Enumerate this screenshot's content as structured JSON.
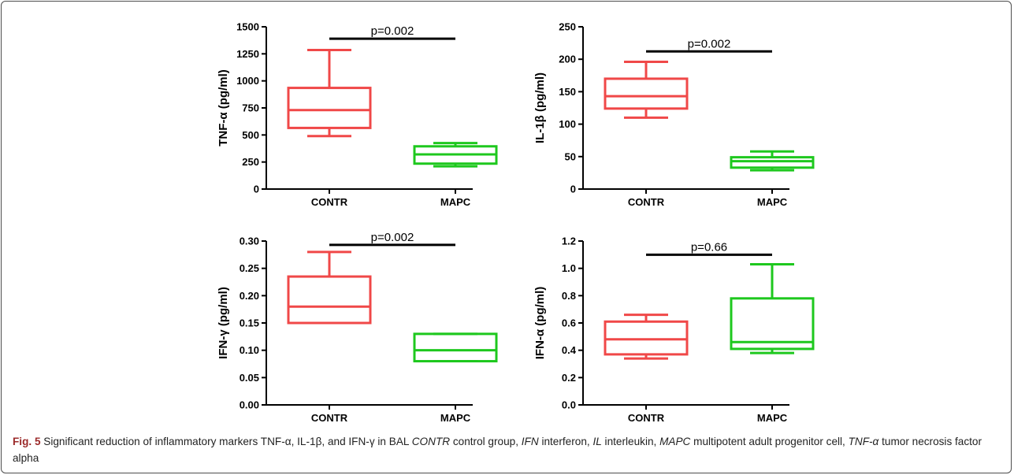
{
  "caption": {
    "label": "Fig. 5",
    "text": "Significant reduction of inflammatory markers TNF-α, IL-1β, and IFN-γ in BAL CONTR control group, IFN interferon, IL interleukin, MAPC multipotent adult progenitor cell, TNF-α tumor necrosis factor alpha",
    "segments": [
      {
        "text": " Significant reduction of inflammatory markers TNF-α, IL-1β, and IFN-γ in BAL ",
        "italic": false
      },
      {
        "text": "CONTR",
        "italic": true
      },
      {
        "text": " control group, ",
        "italic": false
      },
      {
        "text": "IFN",
        "italic": true
      },
      {
        "text": " interferon, ",
        "italic": false
      },
      {
        "text": "IL",
        "italic": true
      },
      {
        "text": " interleukin, ",
        "italic": false
      },
      {
        "text": "MAPC",
        "italic": true
      },
      {
        "text": " multipotent adult progenitor cell, ",
        "italic": false
      },
      {
        "text": "TNF-α",
        "italic": true
      },
      {
        "text": " tumor necrosis factor alpha",
        "italic": false
      }
    ]
  },
  "colors": {
    "contr": "#f04848",
    "mapc": "#1ec81e",
    "axis": "#000000"
  },
  "chart_data": [
    {
      "id": "tnf",
      "type": "box",
      "ylabel": "TNF-α (pg/ml)",
      "ylim": [
        0,
        1500
      ],
      "yticks": [
        "0",
        "250",
        "500",
        "750",
        "1000",
        "1250",
        "1500"
      ],
      "categories": [
        "CONTR",
        "MAPC"
      ],
      "series": [
        {
          "category": "CONTR",
          "min": 490,
          "q1": 565,
          "median": 730,
          "q3": 935,
          "max": 1285,
          "color_key": "contr"
        },
        {
          "category": "MAPC",
          "min": 210,
          "q1": 235,
          "median": 320,
          "q3": 395,
          "max": 425,
          "color_key": "mapc"
        }
      ],
      "annotation": {
        "text": "p=0.002",
        "y": 1390
      }
    },
    {
      "id": "il1b",
      "type": "box",
      "ylabel": "IL-1β (pg/ml)",
      "ylim": [
        0,
        250
      ],
      "yticks": [
        "0",
        "50",
        "100",
        "150",
        "200",
        "250"
      ],
      "categories": [
        "CONTR",
        "MAPC"
      ],
      "series": [
        {
          "category": "CONTR",
          "min": 110,
          "q1": 124,
          "median": 143,
          "q3": 170,
          "max": 196,
          "color_key": "contr"
        },
        {
          "category": "MAPC",
          "min": 29,
          "q1": 33,
          "median": 43,
          "q3": 49,
          "max": 58,
          "color_key": "mapc"
        }
      ],
      "annotation": {
        "text": "p=0.002",
        "y": 212
      }
    },
    {
      "id": "ifng",
      "type": "box",
      "ylabel": "IFN-γ (pg/ml)",
      "ylim": [
        0,
        0.3
      ],
      "yticks": [
        "0.00",
        "0.05",
        "0.10",
        "0.15",
        "0.20",
        "0.25",
        "0.30"
      ],
      "categories": [
        "CONTR",
        "MAPC"
      ],
      "series": [
        {
          "category": "CONTR",
          "min": 0.15,
          "q1": 0.15,
          "median": 0.18,
          "q3": 0.235,
          "max": 0.28,
          "color_key": "contr"
        },
        {
          "category": "MAPC",
          "min": 0.08,
          "q1": 0.08,
          "median": 0.1,
          "q3": 0.13,
          "max": 0.13,
          "color_key": "mapc"
        }
      ],
      "annotation": {
        "text": "p=0.002",
        "y": 0.293
      }
    },
    {
      "id": "ifna",
      "type": "box",
      "ylabel": "IFN-α (pg/ml)",
      "ylim": [
        0,
        1.2
      ],
      "yticks": [
        "0.0",
        "0.2",
        "0.4",
        "0.6",
        "0.8",
        "1.0",
        "1.2"
      ],
      "categories": [
        "CONTR",
        "MAPC"
      ],
      "series": [
        {
          "category": "CONTR",
          "min": 0.34,
          "q1": 0.37,
          "median": 0.48,
          "q3": 0.61,
          "max": 0.66,
          "color_key": "contr"
        },
        {
          "category": "MAPC",
          "min": 0.38,
          "q1": 0.41,
          "median": 0.46,
          "q3": 0.78,
          "max": 1.03,
          "color_key": "mapc"
        }
      ],
      "annotation": {
        "text": "p=0.66",
        "y": 1.1
      }
    }
  ]
}
